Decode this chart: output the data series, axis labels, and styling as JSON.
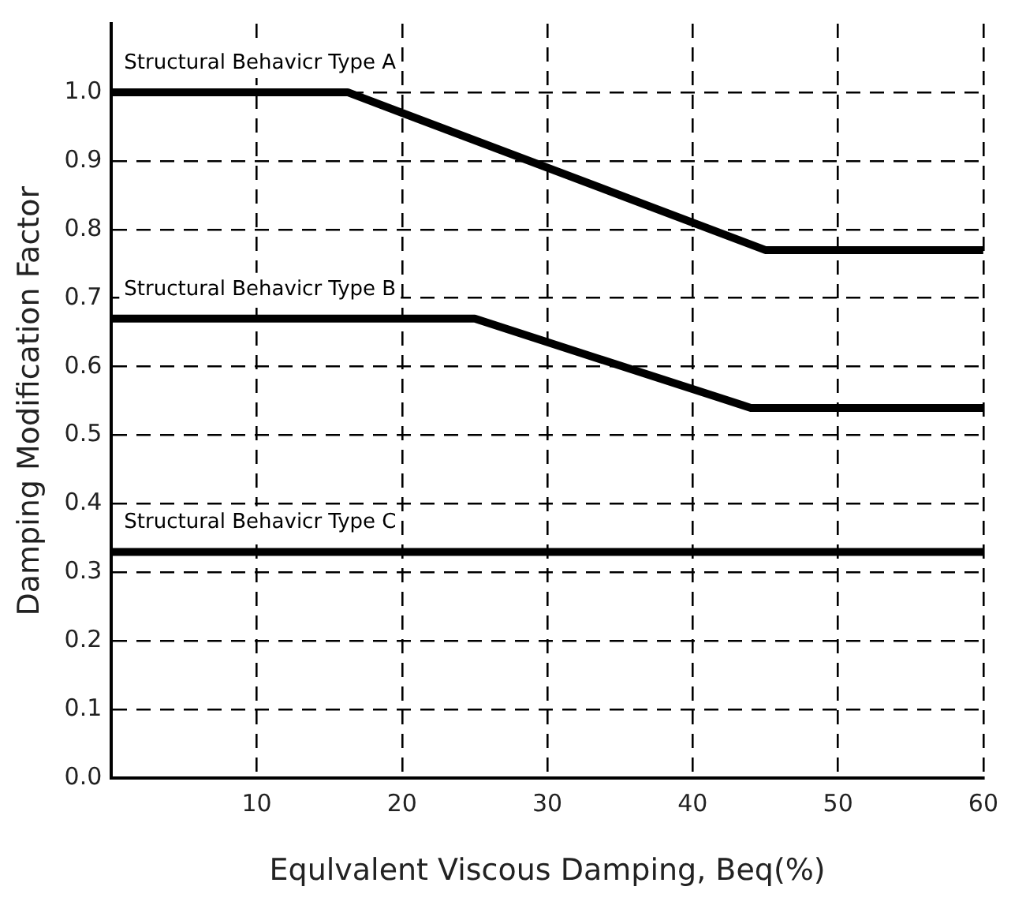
{
  "chart_data": {
    "type": "line",
    "xlabel": "Equlvalent Viscous Damping, Beq(%)",
    "ylabel": "Damping Modification Factor",
    "series": [
      {
        "name": "Structural Behavicr Type A",
        "color": "#000000",
        "x": [
          0,
          16.25,
          45,
          60
        ],
        "values": [
          1.0,
          1.0,
          0.77,
          0.77
        ]
      },
      {
        "name": "Structural Behavicr Type B",
        "color": "#000000",
        "x": [
          0,
          25,
          44,
          60
        ],
        "values": [
          0.67,
          0.67,
          0.54,
          0.54
        ]
      },
      {
        "name": "Structural Behavicr Type C",
        "color": "#000000",
        "x": [
          0,
          60
        ],
        "values": [
          0.33,
          0.33
        ]
      }
    ],
    "xlim": [
      0,
      60
    ],
    "xticks": [
      10,
      20,
      30,
      40,
      50,
      60
    ],
    "ylim": [
      0,
      1.1
    ],
    "yticks": [
      {
        "value": 0,
        "label": "0.0"
      },
      {
        "value": 0.1,
        "label": "0.1"
      },
      {
        "value": 0.2,
        "label": "0.2"
      },
      {
        "value": 0.3,
        "label": "0.3"
      },
      {
        "value": 0.4,
        "label": "0.4"
      },
      {
        "value": 0.5,
        "label": "0.5"
      },
      {
        "value": 0.6,
        "label": "0.6"
      },
      {
        "value": 0.7,
        "label": "0.7"
      },
      {
        "value": 0.8,
        "label": "0.8"
      },
      {
        "value": 0.9,
        "label": "0.9"
      },
      {
        "value": 1.0,
        "label": "1.0"
      }
    ],
    "grid": true,
    "legend": false,
    "marker": "none",
    "line_style": "solid"
  }
}
